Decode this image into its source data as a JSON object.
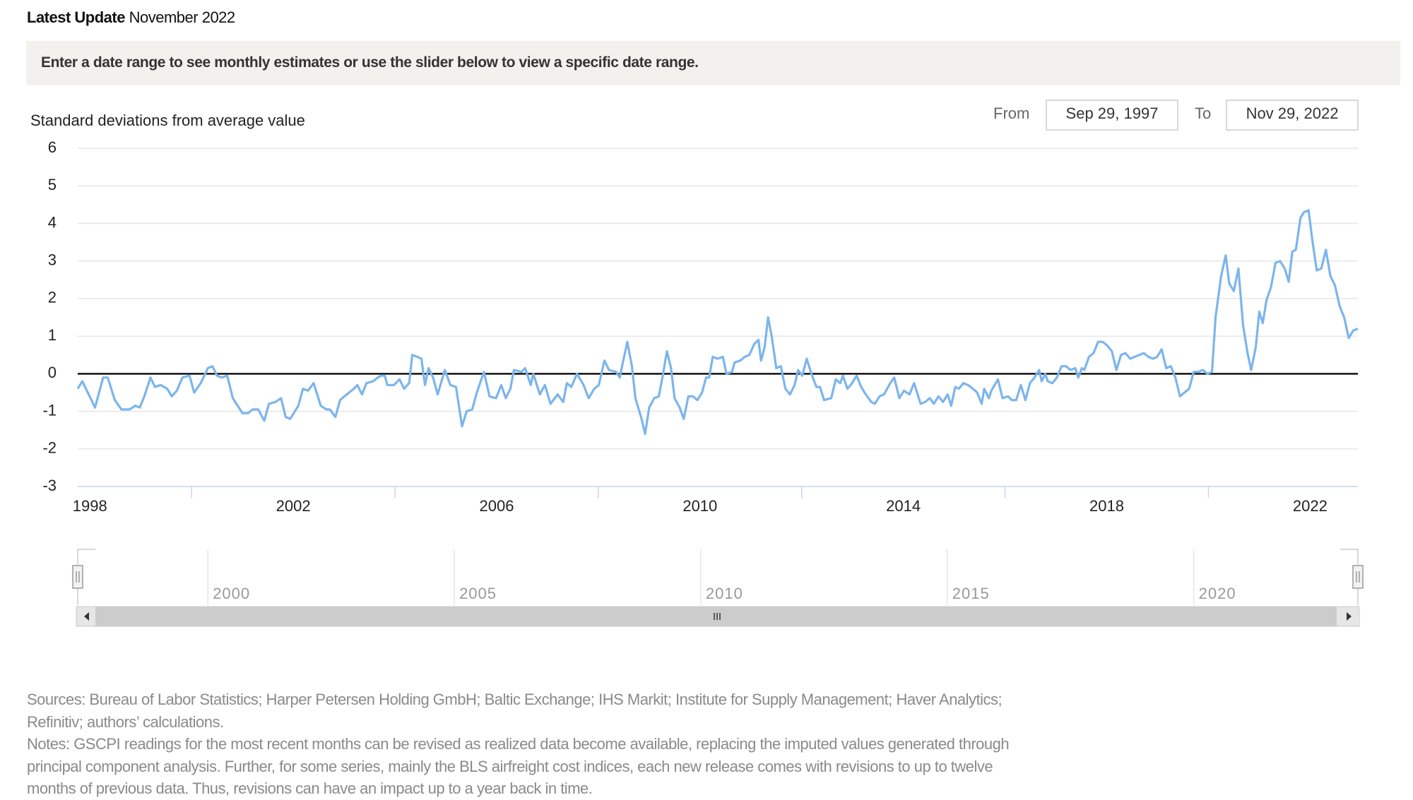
{
  "header": {
    "label": "Latest Update",
    "date": "November 2022"
  },
  "instruction": "Enter a date range to see monthly estimates or use the slider below to view a specific date range.",
  "date_range": {
    "from_label": "From",
    "from": "Sep 29, 1997",
    "to_label": "To",
    "to": "Nov 29, 2022"
  },
  "chart_data": {
    "type": "line",
    "ylabel": "Standard deviations from average value",
    "color": "#7cb5ec",
    "x": [
      1997.76,
      1997.85,
      1998.03,
      1998.1,
      1998.26,
      1998.35,
      1998.49,
      1998.62,
      1998.78,
      1998.89,
      1998.98,
      1999.07,
      1999.19,
      1999.28,
      1999.39,
      1999.52,
      1999.61,
      1999.71,
      1999.82,
      1999.96,
      2000.05,
      2000.18,
      2000.32,
      2000.41,
      2000.5,
      2000.59,
      2000.7,
      2000.81,
      2001.0,
      2001.11,
      2001.2,
      2001.31,
      2001.43,
      2001.52,
      2001.65,
      2001.76,
      2001.85,
      2001.94,
      2002.1,
      2002.19,
      2002.29,
      2002.4,
      2002.54,
      2002.65,
      2002.72,
      2002.83,
      2002.92,
      2003.05,
      2003.19,
      2003.26,
      2003.35,
      2003.44,
      2003.57,
      2003.66,
      2003.73,
      2003.8,
      2003.85,
      2003.98,
      2004.09,
      2004.18,
      2004.28,
      2004.34,
      2004.44,
      2004.52,
      2004.59,
      2004.66,
      2004.75,
      2004.84,
      2004.98,
      2005.09,
      2005.2,
      2005.32,
      2005.41,
      2005.52,
      2005.61,
      2005.75,
      2005.86,
      2005.99,
      2006.09,
      2006.18,
      2006.27,
      2006.34,
      2006.49,
      2006.56,
      2006.67,
      2006.72,
      2006.85,
      2006.95,
      2007.06,
      2007.2,
      2007.31,
      2007.38,
      2007.47,
      2007.58,
      2007.71,
      2007.81,
      2007.92,
      2008.01,
      2008.12,
      2008.21,
      2008.35,
      2008.42,
      2008.57,
      2008.66,
      2008.73,
      2008.85,
      2008.92,
      2009.0,
      2009.1,
      2009.19,
      2009.26,
      2009.35,
      2009.43,
      2009.5,
      2009.6,
      2009.68,
      2009.77,
      2009.86,
      2009.95,
      2010.04,
      2010.12,
      2010.18,
      2010.25,
      2010.34,
      2010.45,
      2010.52,
      2010.63,
      2010.68,
      2010.79,
      2010.88,
      2010.97,
      2011.07,
      2011.15,
      2011.2,
      2011.27,
      2011.34,
      2011.41,
      2011.5,
      2011.59,
      2011.68,
      2011.77,
      2011.86,
      2011.93,
      2012.01,
      2012.1,
      2012.19,
      2012.29,
      2012.36,
      2012.44,
      2012.58,
      2012.67,
      2012.76,
      2012.81,
      2012.9,
      2012.99,
      2013.08,
      2013.17,
      2013.26,
      2013.37,
      2013.44,
      2013.53,
      2013.62,
      2013.74,
      2013.82,
      2013.92,
      2014.01,
      2014.12,
      2014.21,
      2014.34,
      2014.43,
      2014.52,
      2014.6,
      2014.69,
      2014.78,
      2014.87,
      2014.94,
      2015.02,
      2015.09,
      2015.18,
      2015.27,
      2015.37,
      2015.45,
      2015.54,
      2015.59,
      2015.68,
      2015.73,
      2015.86,
      2015.95,
      2016.06,
      2016.13,
      2016.22,
      2016.31,
      2016.4,
      2016.49,
      2016.58,
      2016.67,
      2016.72,
      2016.79,
      2016.84,
      2016.93,
      2017.02,
      2017.11,
      2017.2,
      2017.29,
      2017.38,
      2017.44,
      2017.51,
      2017.56,
      2017.65,
      2017.74,
      2017.83,
      2017.92,
      2018.01,
      2018.1,
      2018.19,
      2018.28,
      2018.37,
      2018.46,
      2018.55,
      2018.64,
      2018.73,
      2018.82,
      2018.91,
      2018.99,
      2019.08,
      2019.17,
      2019.26,
      2019.35,
      2019.44,
      2019.53,
      2019.62,
      2019.71,
      2019.8,
      2019.89,
      2019.98,
      2020.07,
      2020.14,
      2020.25,
      2020.34,
      2020.41,
      2020.5,
      2020.59,
      2020.68,
      2020.77,
      2020.84,
      2020.93,
      2021.0,
      2021.07,
      2021.14,
      2021.23,
      2021.32,
      2021.41,
      2021.5,
      2021.58,
      2021.65,
      2021.72,
      2021.81,
      2021.88,
      2021.97,
      2022.04,
      2022.13,
      2022.22,
      2022.31,
      2022.4,
      2022.49,
      2022.58,
      2022.67,
      2022.76,
      2022.85,
      2022.94
    ],
    "values": [
      -0.4,
      -0.2,
      -0.7,
      -0.9,
      -0.1,
      -0.1,
      -0.7,
      -0.95,
      -0.95,
      -0.85,
      -0.9,
      -0.6,
      -0.1,
      -0.35,
      -0.3,
      -0.4,
      -0.6,
      -0.45,
      -0.1,
      -0.05,
      -0.5,
      -0.25,
      0.15,
      0.2,
      -0.05,
      -0.1,
      -0.05,
      -0.65,
      -1.05,
      -1.05,
      -0.95,
      -0.95,
      -1.25,
      -0.8,
      -0.75,
      -0.65,
      -1.15,
      -1.2,
      -0.85,
      -0.4,
      -0.45,
      -0.25,
      -0.85,
      -0.95,
      -0.95,
      -1.15,
      -0.7,
      -0.55,
      -0.4,
      -0.3,
      -0.55,
      -0.25,
      -0.2,
      -0.1,
      -0.05,
      -0.05,
      -0.3,
      -0.3,
      -0.15,
      -0.4,
      -0.25,
      0.5,
      0.45,
      0.4,
      -0.3,
      0.15,
      -0.1,
      -0.55,
      0.1,
      -0.3,
      -0.35,
      -1.4,
      -1.0,
      -0.95,
      -0.5,
      0.05,
      -0.6,
      -0.65,
      -0.3,
      -0.65,
      -0.4,
      0.1,
      0.05,
      0.15,
      -0.3,
      0.0,
      -0.55,
      -0.3,
      -0.8,
      -0.55,
      -0.75,
      -0.25,
      -0.35,
      0.0,
      -0.3,
      -0.65,
      -0.4,
      -0.3,
      0.35,
      0.1,
      0.05,
      -0.1,
      0.85,
      0.2,
      -0.65,
      -1.2,
      -1.6,
      -0.9,
      -0.65,
      -0.6,
      -0.1,
      0.6,
      0.15,
      -0.65,
      -0.9,
      -1.2,
      -0.6,
      -0.6,
      -0.7,
      -0.5,
      -0.1,
      -0.1,
      0.45,
      0.4,
      0.45,
      0.0,
      0.05,
      0.3,
      0.35,
      0.45,
      0.5,
      0.8,
      0.9,
      0.35,
      0.7,
      1.5,
      1.0,
      0.15,
      0.2,
      -0.4,
      -0.55,
      -0.3,
      0.1,
      -0.05,
      0.4,
      0.0,
      -0.35,
      -0.35,
      -0.7,
      -0.65,
      -0.15,
      -0.25,
      -0.05,
      -0.4,
      -0.25,
      -0.05,
      -0.35,
      -0.55,
      -0.75,
      -0.8,
      -0.6,
      -0.55,
      -0.25,
      -0.1,
      -0.65,
      -0.45,
      -0.55,
      -0.25,
      -0.8,
      -0.75,
      -0.65,
      -0.8,
      -0.6,
      -0.75,
      -0.55,
      -0.85,
      -0.35,
      -0.4,
      -0.25,
      -0.3,
      -0.4,
      -0.5,
      -0.8,
      -0.4,
      -0.65,
      -0.45,
      -0.15,
      -0.65,
      -0.6,
      -0.7,
      -0.7,
      -0.3,
      -0.7,
      -0.25,
      -0.1,
      0.1,
      -0.2,
      0.0,
      -0.2,
      -0.25,
      -0.1,
      0.2,
      0.2,
      0.1,
      0.15,
      -0.1,
      0.15,
      0.1,
      0.45,
      0.55,
      0.85,
      0.85,
      0.75,
      0.6,
      0.1,
      0.5,
      0.55,
      0.4,
      0.45,
      0.5,
      0.55,
      0.45,
      0.4,
      0.45,
      0.65,
      0.15,
      0.2,
      -0.1,
      -0.6,
      -0.5,
      -0.4,
      0.05,
      0.05,
      0.1,
      0.0,
      0.05,
      1.5,
      2.6,
      3.15,
      2.4,
      2.2,
      2.8,
      1.3,
      0.55,
      0.1,
      0.7,
      1.65,
      1.35,
      1.95,
      2.3,
      2.95,
      3.0,
      2.8,
      2.45,
      3.25,
      3.3,
      4.15,
      4.3,
      4.35,
      3.6,
      2.75,
      2.8,
      3.3,
      2.6,
      2.35,
      1.8,
      1.5,
      0.95,
      1.15,
      1.2
    ],
    "xlim": [
      1997.76,
      2022.94
    ],
    "xticks": [
      1998,
      2002,
      2006,
      2010,
      2014,
      2018,
      2022
    ],
    "xtick_marks": [
      2000,
      2004,
      2008,
      2012,
      2016,
      2020
    ],
    "ylim": [
      -3,
      6
    ],
    "yticks": [
      -3,
      -2,
      -1,
      0,
      1,
      2,
      3,
      4,
      5,
      6
    ],
    "grid": true,
    "zero_line": true,
    "navigator": {
      "xlim": [
        1997.36,
        2023.33
      ],
      "xticks": [
        2000,
        2005,
        2010,
        2015,
        2020
      ]
    }
  },
  "footer": {
    "sources": "Sources: Bureau of Labor Statistics; Harper Petersen Holding GmbH; Baltic Exchange; IHS Markit; Institute for Supply Management; Haver Analytics; Refinitiv; authors’ calculations.",
    "notes": "Notes: GSCPI readings for the most recent months can be revised as realized data become available, replacing the imputed values generated through principal component analysis. Further, for some series, mainly the BLS airfreight cost indices, each new release comes with revisions to up to twelve months of previous data. Thus, revisions can have an impact up to a year back in time."
  }
}
